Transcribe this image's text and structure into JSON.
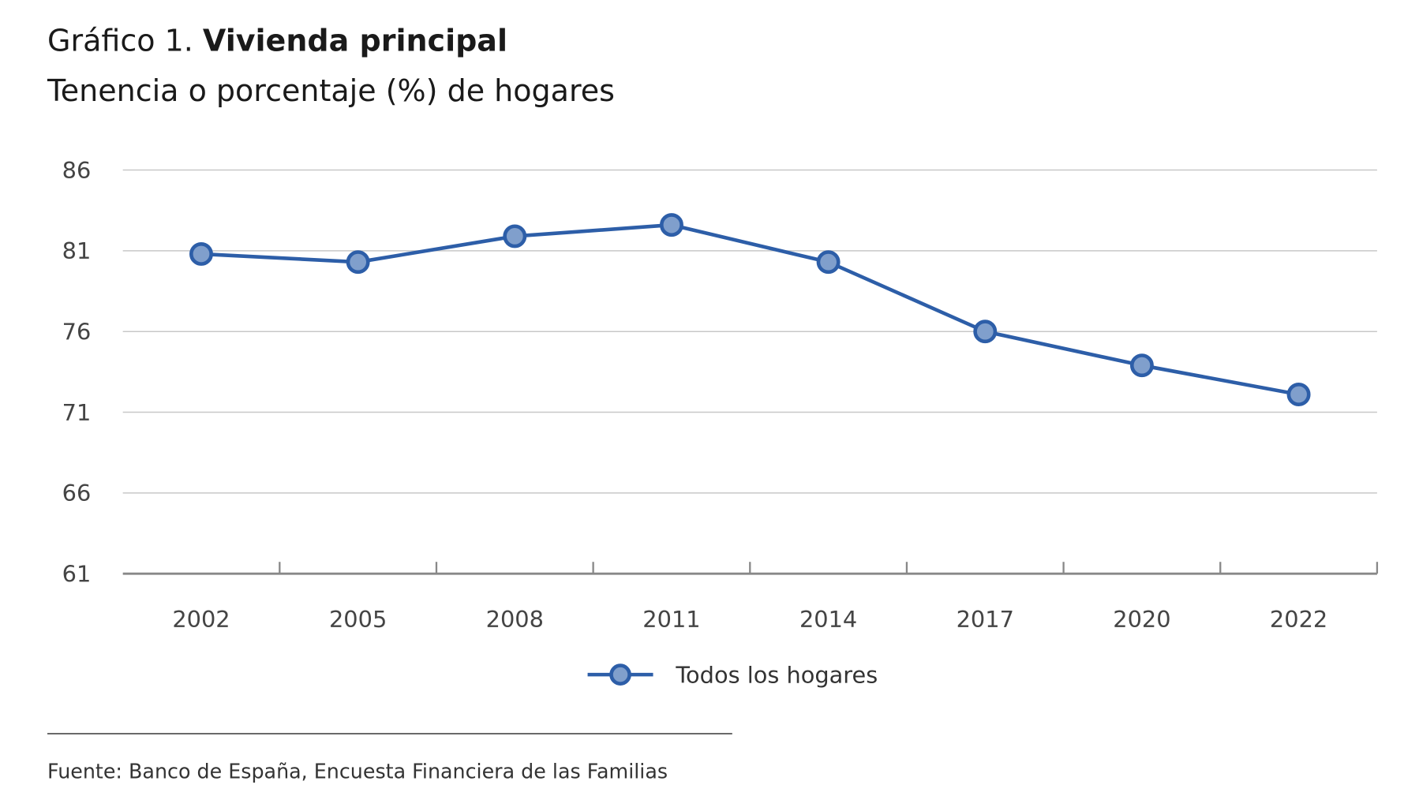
{
  "title_prefix": "Gráfico 1.",
  "title_main": "Vivienda principal",
  "subtitle": "Tenencia o porcentaje (%) de hogares",
  "source": "Fuente: Banco de España, Encuesta Financiera de las Familias",
  "chart_data": {
    "type": "line",
    "title": "Gráfico 1. Vivienda principal",
    "subtitle": "Tenencia o porcentaje (%) de hogares",
    "categories": [
      "2002",
      "2005",
      "2008",
      "2011",
      "2014",
      "2017",
      "2020",
      "2022"
    ],
    "series": [
      {
        "name": "Todos los hogares",
        "values": [
          80.8,
          80.3,
          81.9,
          82.6,
          80.3,
          76.0,
          73.9,
          72.1
        ],
        "color": "#2d5ea8",
        "marker_fill": "#809fcc"
      }
    ],
    "yticks": [
      "86",
      "81",
      "76",
      "71",
      "66",
      "61"
    ],
    "ylim": [
      61,
      86
    ],
    "grid": true,
    "legend_position": "bottom"
  }
}
